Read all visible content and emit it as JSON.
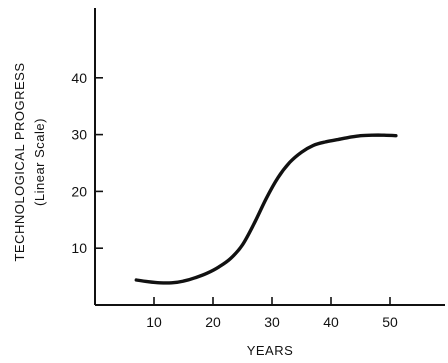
{
  "chart_data": {
    "type": "line",
    "title": "",
    "xlabel": "YEARS",
    "ylabel": "TECHNOLOGICAL PROGRESS",
    "ylabel_sub": "(Linear Scale)",
    "xlim": [
      0,
      60
    ],
    "ylim": [
      0,
      50
    ],
    "x_ticks": [
      10,
      20,
      30,
      40,
      50
    ],
    "y_ticks": [
      10,
      20,
      30,
      40
    ],
    "grid": false,
    "legend": "none",
    "series": [
      {
        "color": "#111111",
        "x": [
          7,
          9,
          11,
          13,
          15,
          17,
          19,
          21,
          23,
          25,
          27,
          29,
          31,
          33,
          35,
          37,
          39,
          41,
          43,
          45,
          47,
          49,
          51
        ],
        "y": [
          4.4,
          4.1,
          3.9,
          3.9,
          4.2,
          4.8,
          5.6,
          6.7,
          8.2,
          10.6,
          14.4,
          18.7,
          22.4,
          25.1,
          26.9,
          28.1,
          28.7,
          29.1,
          29.5,
          29.8,
          29.9,
          29.9,
          29.8
        ]
      }
    ]
  }
}
